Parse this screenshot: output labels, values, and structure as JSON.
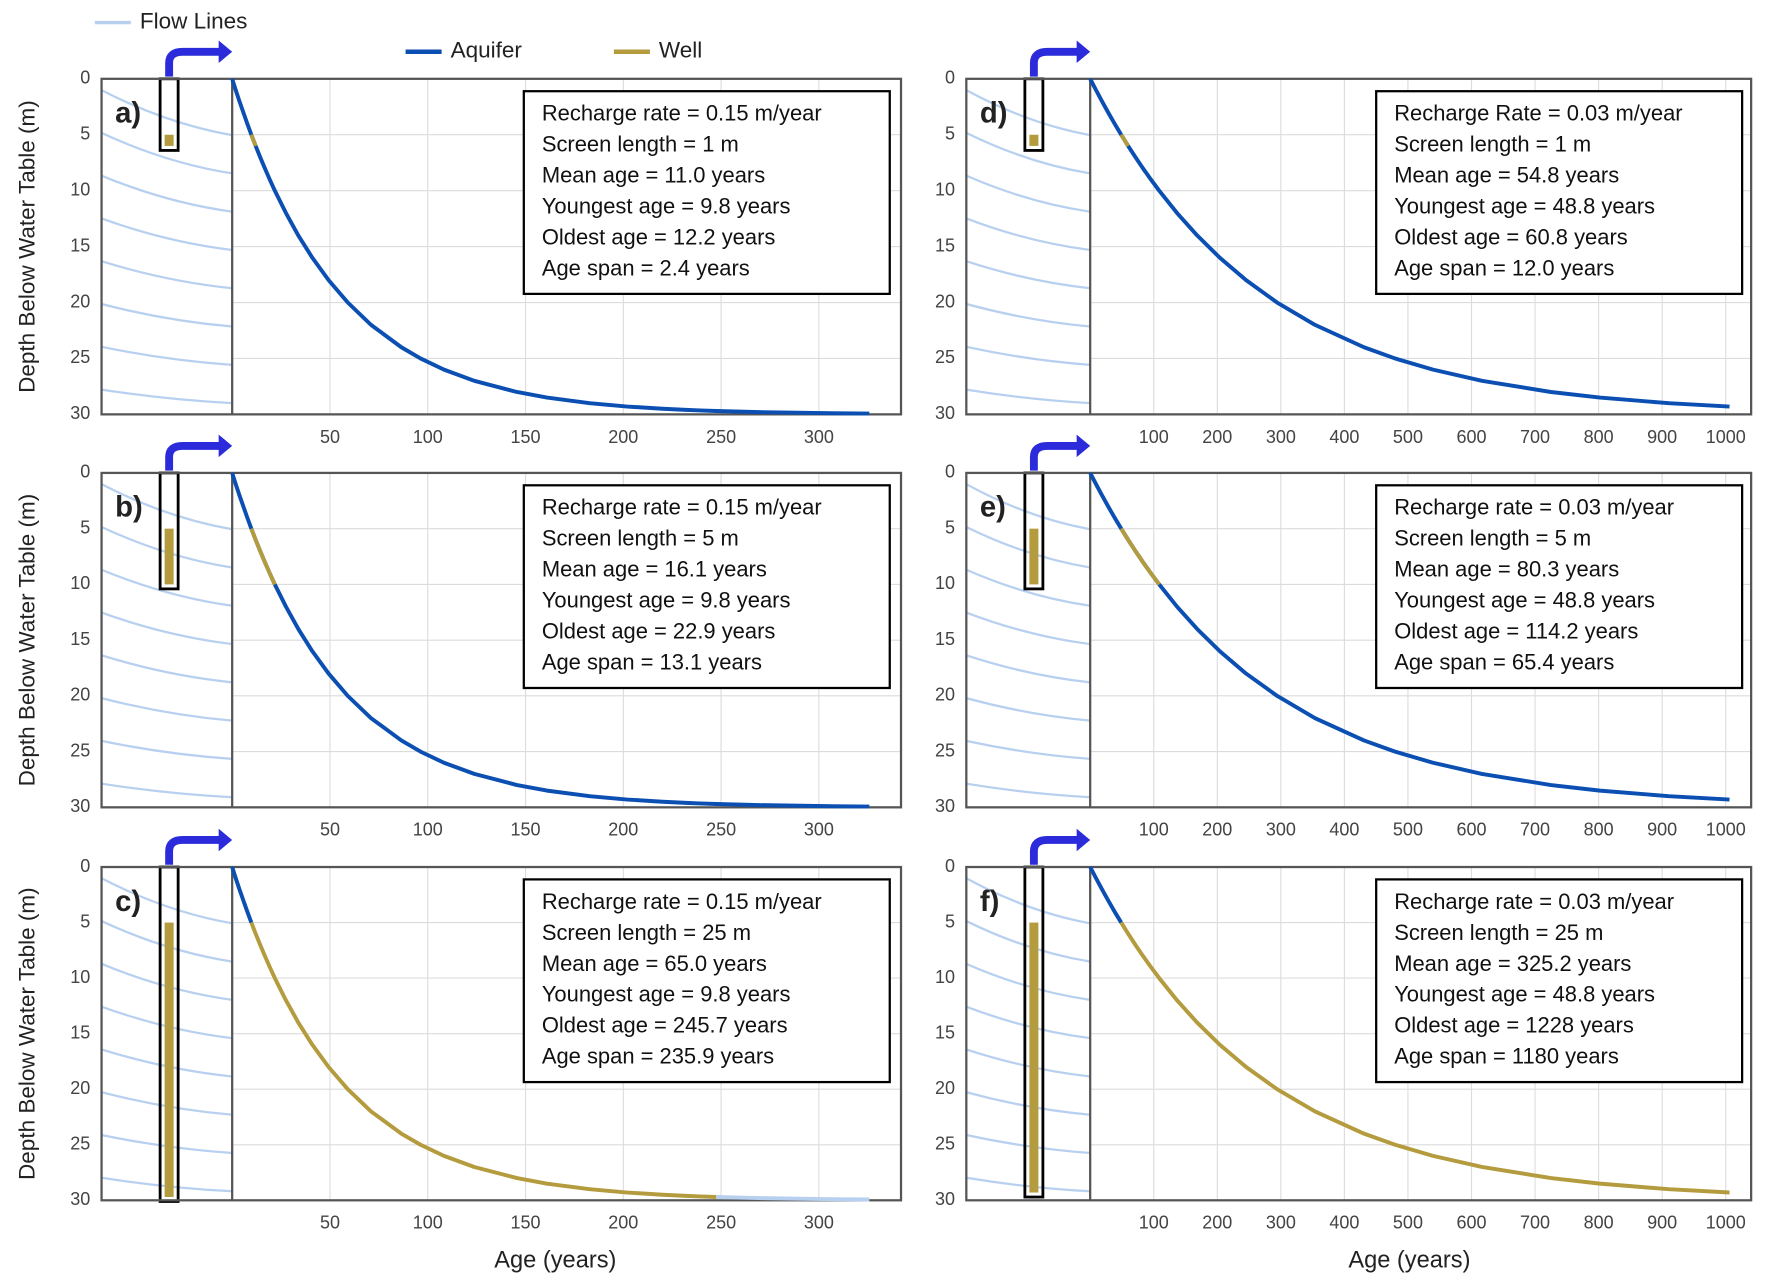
{
  "legend": [
    {
      "name": "Flow Lines",
      "color": "#b8d0f0"
    },
    {
      "name": "Aquifer",
      "color": "#0b4fb3"
    },
    {
      "name": "Well",
      "color": "#b39b3e"
    }
  ],
  "chart_data": [
    {
      "type": "line",
      "panel": "a)",
      "y_label": "Depth Below Water Table (m)",
      "info": [
        "Recharge rate = 0.15 m/year",
        "Screen length = 1 m",
        "Mean age = 11.0 years",
        "Youngest age = 9.8 years",
        "Oldest age = 12.2 years",
        "Age span = 2.4 years"
      ],
      "x": [
        0,
        1.8,
        3.7,
        5.7,
        7.7,
        9.8,
        12.0,
        14.3,
        16.7,
        19.2,
        21.8,
        27.5,
        33.8,
        41.0,
        49.3,
        59.1,
        71.0,
        86.5,
        96.3,
        108.3,
        123.8,
        145.6,
        161.0,
        182.8,
        202.0,
        220.1,
        232.1,
        239.2,
        247.5,
        269.3,
        306.6,
        325.8
      ],
      "series": [
        {
          "color": "#0b4fb3",
          "values": [
            0,
            1,
            2,
            3,
            4,
            5,
            6,
            7,
            8,
            9,
            10,
            12,
            14,
            16,
            18,
            20,
            22,
            24,
            25,
            26,
            27,
            28,
            28.5,
            29,
            29.3,
            29.5,
            29.6,
            29.65,
            29.7,
            29.8,
            29.9,
            29.93
          ]
        },
        {
          "color": "#b39b3e",
          "values": [
            null,
            null,
            null,
            null,
            null,
            5,
            6,
            null,
            null,
            null,
            null,
            null,
            null,
            null,
            null,
            null,
            null,
            null,
            null,
            null,
            null,
            null,
            null,
            null,
            null,
            null,
            null,
            null,
            null,
            null,
            null,
            null
          ]
        }
      ],
      "xlim": [
        0,
        342
      ],
      "xticks": [
        50,
        100,
        150,
        200,
        250,
        300
      ],
      "ylim": [
        30,
        0
      ],
      "yticks": [
        0,
        5,
        10,
        15,
        20,
        25,
        30
      ]
    },
    {
      "type": "line",
      "panel": "b)",
      "y_label": "Depth Below Water Table (m)",
      "info": [
        "Recharge rate = 0.15 m/year",
        "Screen length = 5 m",
        "Mean age = 16.1 years",
        "Youngest age = 9.8 years",
        "Oldest age = 22.9 years",
        "Age span = 13.1 years"
      ],
      "x": [
        0,
        1.8,
        3.7,
        5.7,
        7.7,
        9.8,
        12.0,
        14.3,
        16.7,
        19.2,
        21.8,
        27.5,
        33.8,
        41.0,
        49.3,
        59.1,
        71.0,
        86.5,
        96.3,
        108.3,
        123.8,
        145.6,
        161.0,
        182.8,
        202.0,
        220.1,
        232.1,
        239.2,
        247.5,
        269.3,
        306.6,
        325.8
      ],
      "series": [
        {
          "color": "#0b4fb3",
          "values": [
            0,
            1,
            2,
            3,
            4,
            5,
            6,
            7,
            8,
            9,
            10,
            12,
            14,
            16,
            18,
            20,
            22,
            24,
            25,
            26,
            27,
            28,
            28.5,
            29,
            29.3,
            29.5,
            29.6,
            29.65,
            29.7,
            29.8,
            29.9,
            29.93
          ]
        },
        {
          "color": "#b39b3e",
          "values": [
            null,
            null,
            null,
            null,
            null,
            5,
            6,
            7,
            8,
            9,
            10,
            null,
            null,
            null,
            null,
            null,
            null,
            null,
            null,
            null,
            null,
            null,
            null,
            null,
            null,
            null,
            null,
            null,
            null,
            null,
            null,
            null
          ]
        }
      ],
      "xlim": [
        0,
        342
      ],
      "xticks": [
        50,
        100,
        150,
        200,
        250,
        300
      ],
      "ylim": [
        30,
        0
      ],
      "yticks": [
        0,
        5,
        10,
        15,
        20,
        25,
        30
      ]
    },
    {
      "type": "line",
      "panel": "c)",
      "y_label": "Depth Below Water Table (m)",
      "x_label": "Age (years)",
      "info": [
        "Recharge rate = 0.15 m/year",
        "Screen length = 25 m",
        "Mean age = 65.0 years",
        "Youngest age = 9.8 years",
        "Oldest age = 245.7 years",
        "Age span = 235.9 years"
      ],
      "x": [
        0,
        1.8,
        3.7,
        5.7,
        7.7,
        9.8,
        12.0,
        14.3,
        16.7,
        19.2,
        21.8,
        27.5,
        33.8,
        41.0,
        49.3,
        59.1,
        71.0,
        86.5,
        96.3,
        108.3,
        123.8,
        145.6,
        161.0,
        182.8,
        202.0,
        220.1,
        232.1,
        239.2,
        247.5,
        269.3,
        306.6,
        325.8
      ],
      "series": [
        {
          "color": "#0b4fb3",
          "values": [
            0,
            1,
            2,
            3,
            4,
            5,
            null,
            null,
            null,
            null,
            null,
            null,
            null,
            null,
            null,
            null,
            null,
            null,
            null,
            null,
            null,
            null,
            null,
            null,
            null,
            null,
            null,
            null,
            null,
            null,
            null,
            null
          ]
        },
        {
          "color": "#b39b3e",
          "values": [
            null,
            null,
            null,
            null,
            null,
            5,
            6,
            7,
            8,
            9,
            10,
            12,
            14,
            16,
            18,
            20,
            22,
            24,
            25,
            26,
            27,
            28,
            28.5,
            29,
            29.3,
            29.5,
            29.6,
            29.65,
            29.7,
            null,
            null,
            null
          ]
        },
        {
          "color": "#b8d0f0",
          "values": [
            null,
            null,
            null,
            null,
            null,
            null,
            null,
            null,
            null,
            null,
            null,
            null,
            null,
            null,
            null,
            null,
            null,
            null,
            null,
            null,
            null,
            null,
            null,
            null,
            null,
            null,
            null,
            null,
            29.7,
            29.8,
            29.9,
            29.93
          ]
        }
      ],
      "xlim": [
        0,
        342
      ],
      "xticks": [
        50,
        100,
        150,
        200,
        250,
        300
      ],
      "ylim": [
        30,
        0
      ],
      "yticks": [
        0,
        5,
        10,
        15,
        20,
        25,
        30
      ]
    },
    {
      "type": "line",
      "panel": "d)",
      "info": [
        "Recharge Rate = 0.03 m/year",
        "Screen length = 1 m",
        "Mean age = 54.8 years",
        "Youngest age = 48.8 years",
        "Oldest age = 60.8 years",
        "Age span = 12.0 years"
      ],
      "x": [
        0,
        9.1,
        18.5,
        28.2,
        38.3,
        48.8,
        59.7,
        71.1,
        83.0,
        95.5,
        108.6,
        136.7,
        168.3,
        204.0,
        245.3,
        294.1,
        353.8,
        430.8,
        479.7,
        539.4,
        616.4,
        725.0,
        802.0,
        910.5,
        1006.0
      ],
      "series": [
        {
          "color": "#0b4fb3",
          "values": [
            0,
            1,
            2,
            3,
            4,
            5,
            6,
            7,
            8,
            9,
            10,
            12,
            14,
            16,
            18,
            20,
            22,
            24,
            25,
            26,
            27,
            28,
            28.5,
            29,
            29.3
          ]
        },
        {
          "color": "#b39b3e",
          "values": [
            null,
            null,
            null,
            null,
            null,
            5,
            6,
            null,
            null,
            null,
            null,
            null,
            null,
            null,
            null,
            null,
            null,
            null,
            null,
            null,
            null,
            null,
            null,
            null,
            null
          ]
        }
      ],
      "xlim": [
        0,
        1040
      ],
      "xticks": [
        100,
        200,
        300,
        400,
        500,
        600,
        700,
        800,
        900,
        1000
      ],
      "ylim": [
        30,
        0
      ],
      "yticks": [
        0,
        5,
        10,
        15,
        20,
        25,
        30
      ]
    },
    {
      "type": "line",
      "panel": "e)",
      "info": [
        "Recharge rate = 0.03 m/year",
        "Screen length = 5 m",
        "Mean age = 80.3 years",
        "Youngest age = 48.8 years",
        "Oldest age = 114.2 years",
        "Age span = 65.4 years"
      ],
      "x": [
        0,
        9.1,
        18.5,
        28.2,
        38.3,
        48.8,
        59.7,
        71.1,
        83.0,
        95.5,
        108.6,
        136.7,
        168.3,
        204.0,
        245.3,
        294.1,
        353.8,
        430.8,
        479.7,
        539.4,
        616.4,
        725.0,
        802.0,
        910.5,
        1006.0
      ],
      "series": [
        {
          "color": "#0b4fb3",
          "values": [
            0,
            1,
            2,
            3,
            4,
            5,
            6,
            7,
            8,
            9,
            10,
            12,
            14,
            16,
            18,
            20,
            22,
            24,
            25,
            26,
            27,
            28,
            28.5,
            29,
            29.3
          ]
        },
        {
          "color": "#b39b3e",
          "values": [
            null,
            null,
            null,
            null,
            null,
            5,
            6,
            7,
            8,
            9,
            10,
            null,
            null,
            null,
            null,
            null,
            null,
            null,
            null,
            null,
            null,
            null,
            null,
            null,
            null
          ]
        }
      ],
      "xlim": [
        0,
        1040
      ],
      "xticks": [
        100,
        200,
        300,
        400,
        500,
        600,
        700,
        800,
        900,
        1000
      ],
      "ylim": [
        30,
        0
      ],
      "yticks": [
        0,
        5,
        10,
        15,
        20,
        25,
        30
      ]
    },
    {
      "type": "line",
      "panel": "f)",
      "x_label": "Age (years)",
      "info": [
        "Recharge rate = 0.03 m/year",
        "Screen length = 25 m",
        "Mean age = 325.2 years",
        "Youngest age = 48.8 years",
        "Oldest age = 1228 years",
        "Age span = 1180 years"
      ],
      "x": [
        0,
        9.1,
        18.5,
        28.2,
        38.3,
        48.8,
        59.7,
        71.1,
        83.0,
        95.5,
        108.6,
        136.7,
        168.3,
        204.0,
        245.3,
        294.1,
        353.8,
        430.8,
        479.7,
        539.4,
        616.4,
        725.0,
        802.0,
        910.5,
        1006.0
      ],
      "series": [
        {
          "color": "#0b4fb3",
          "values": [
            0,
            1,
            2,
            3,
            4,
            5,
            null,
            null,
            null,
            null,
            null,
            null,
            null,
            null,
            null,
            null,
            null,
            null,
            null,
            null,
            null,
            null,
            null,
            null,
            null
          ]
        },
        {
          "color": "#b39b3e",
          "values": [
            null,
            null,
            null,
            null,
            null,
            5,
            6,
            7,
            8,
            9,
            10,
            12,
            14,
            16,
            18,
            20,
            22,
            24,
            25,
            26,
            27,
            28,
            28.5,
            29,
            29.3
          ]
        }
      ],
      "xlim": [
        0,
        1040
      ],
      "xticks": [
        100,
        200,
        300,
        400,
        500,
        600,
        700,
        800,
        900,
        1000
      ],
      "ylim": [
        30,
        0
      ],
      "yticks": [
        0,
        5,
        10,
        15,
        20,
        25,
        30
      ]
    }
  ]
}
